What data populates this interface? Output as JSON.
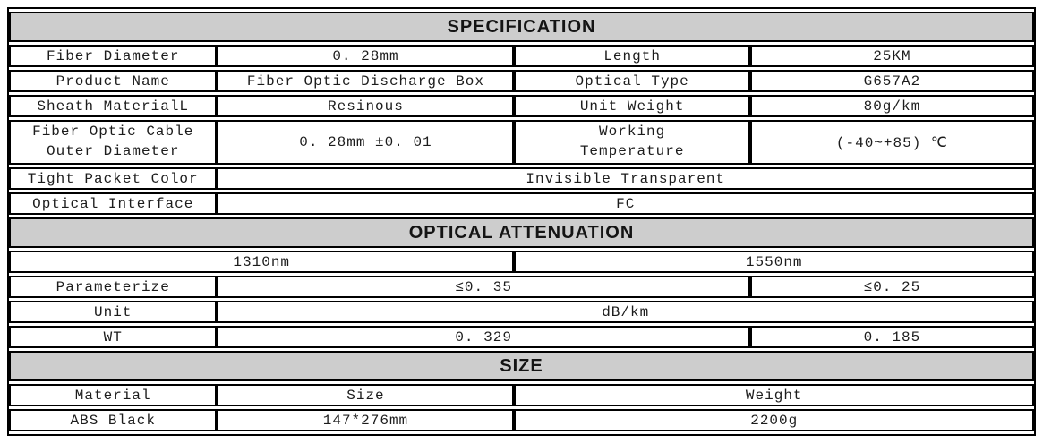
{
  "colors": {
    "header_bg": "#cdcdcd",
    "border": "#000000",
    "text": "#1c1c1c",
    "page_bg": "#ffffff"
  },
  "specification": {
    "title": "SPECIFICATION",
    "rows": [
      {
        "label": "Fiber Diameter",
        "value": "0. 28mm",
        "label2": "Length",
        "value2": "25KM"
      },
      {
        "label": "Product Name",
        "value": "Fiber Optic Discharge Box",
        "label2": "Optical Type",
        "value2": "G657A2"
      },
      {
        "label": "Sheath MaterialL",
        "value": "Resinous",
        "label2": "Unit Weight",
        "value2": "80g/km"
      }
    ],
    "tall_row": {
      "label_line1": "Fiber Optic Cable",
      "label_line2": "Outer Diameter",
      "value": "0. 28mm ±0. 01",
      "label2_line1": "Working",
      "label2_line2": "Temperature",
      "value2": "(-40~+85) ℃"
    },
    "span_rows": [
      {
        "label": "Tight Packet Color",
        "value": "Invisible Transparent"
      },
      {
        "label": "Optical Interface",
        "value": "FC"
      }
    ]
  },
  "optical_attenuation": {
    "title": "OPTICAL ATTENUATION",
    "wavelengths": {
      "col1310": "1310nm",
      "col1550": "1550nm"
    },
    "parameterize": {
      "label": "Parameterize",
      "value1310": "≤0. 35",
      "value1550": "≤0. 25"
    },
    "unit": {
      "label": "Unit",
      "value": "dB/km"
    },
    "wt": {
      "label": "WT",
      "value1310": "0. 329",
      "value1550": "0. 185"
    }
  },
  "size": {
    "title": "SIZE",
    "headers": {
      "material": "Material",
      "size": "Size",
      "weight": "Weight"
    },
    "values": {
      "material": "ABS Black",
      "size": "147*276mm",
      "weight": "2200g"
    }
  }
}
